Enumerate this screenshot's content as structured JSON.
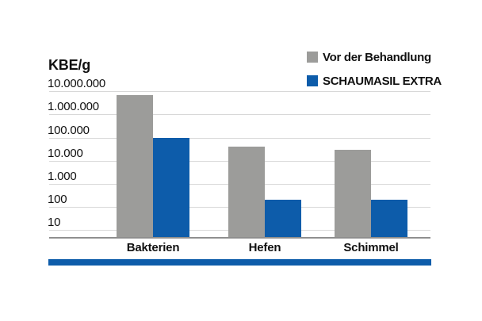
{
  "chart_data": {
    "type": "bar",
    "scale": "log",
    "ylabel": "KBE/g",
    "categories": [
      "Bakterien",
      "Hefen",
      "Schimmel"
    ],
    "series": [
      {
        "name": "Vor der Behandlung",
        "color": "#9c9c9a",
        "values": [
          7000000,
          40000,
          30000
        ]
      },
      {
        "name": "SCHAUMASIL EXTRA",
        "color": "#0d5caa",
        "values": [
          100000,
          200,
          200
        ]
      }
    ],
    "y_ticks": [
      {
        "label": "10.000.000",
        "value": 10000000
      },
      {
        "label": "1.000.000",
        "value": 1000000
      },
      {
        "label": "100.000",
        "value": 100000
      },
      {
        "label": "10.000",
        "value": 10000
      },
      {
        "label": "1.000",
        "value": 1000
      },
      {
        "label": "100",
        "value": 100
      },
      {
        "label": "10",
        "value": 10
      }
    ],
    "ylim": [
      10,
      10000000
    ],
    "grid": true,
    "legend_position": "top-right"
  },
  "colors": {
    "before_bar": "#9c9c9a",
    "after_bar": "#0d5caa",
    "gridline": "#d8d8d8",
    "axis_line": "#8f8f8f",
    "bottom_divider": "#0d5caa",
    "text": "#111111"
  }
}
